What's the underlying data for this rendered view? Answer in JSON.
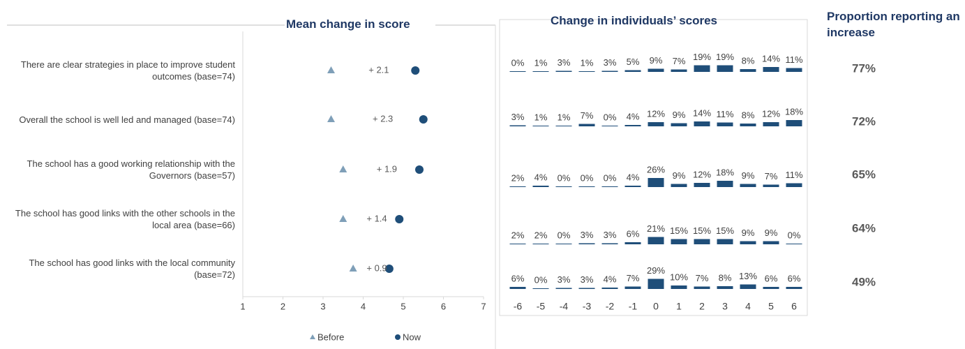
{
  "chart_data": [
    {
      "type": "dot",
      "title": "Mean change in score",
      "categories": [
        "There are clear strategies in place to improve student outcomes  (base=74)",
        "Overall the school is well led and managed (base=74)",
        "The school has a good working relationship with the Governors (base=57)",
        "The school has good links with the other schools in the local area (base=66)",
        "The school has good links with the local community  (base=72)"
      ],
      "series": [
        {
          "name": "Before",
          "color": "#7f9fb8",
          "values": [
            3.2,
            3.2,
            3.5,
            3.5,
            3.75
          ]
        },
        {
          "name": "Now",
          "color": "#1f4e79",
          "values": [
            5.3,
            5.5,
            5.4,
            4.9,
            4.65
          ]
        }
      ],
      "annotations": [
        "+ 2.1",
        "+ 2.3",
        "+ 1.9",
        "+ 1.4",
        "+ 0.9"
      ],
      "xlim": [
        1,
        7
      ],
      "xticks": [
        1,
        2,
        3,
        4,
        5,
        6,
        7
      ],
      "legend": "bottom"
    },
    {
      "type": "bar_rows",
      "title": "Change in individuals’ scores",
      "color": "#1f4e79",
      "categories": [
        -6,
        -5,
        -4,
        -3,
        -2,
        -1,
        0,
        1,
        2,
        3,
        4,
        5,
        6
      ],
      "rows": [
        {
          "values": [
            0,
            1,
            3,
            1,
            3,
            5,
            9,
            7,
            19,
            19,
            8,
            14,
            11
          ],
          "value_labels": [
            "0%",
            "1%",
            "3%",
            "1%",
            "3%",
            "5%",
            "9%",
            "7%",
            "19%",
            "19%",
            "8%",
            "14%",
            "11%"
          ]
        },
        {
          "values": [
            3,
            1,
            1,
            7,
            0,
            4,
            12,
            9,
            14,
            11,
            8,
            12,
            18
          ],
          "value_labels": [
            "3%",
            "1%",
            "1%",
            "7%",
            "0%",
            "4%",
            "12%",
            "9%",
            "14%",
            "11%",
            "8%",
            "12%",
            "18%"
          ]
        },
        {
          "values": [
            2,
            4,
            0,
            0,
            0,
            4,
            26,
            9,
            12,
            18,
            9,
            7,
            11
          ],
          "value_labels": [
            "2%",
            "4%",
            "0%",
            "0%",
            "0%",
            "4%",
            "26%",
            "9%",
            "12%",
            "18%",
            "9%",
            "7%",
            "11%"
          ]
        },
        {
          "values": [
            2,
            2,
            0,
            3,
            3,
            6,
            21,
            15,
            15,
            15,
            9,
            9,
            0
          ],
          "value_labels": [
            "2%",
            "2%",
            "0%",
            "3%",
            "3%",
            "6%",
            "21%",
            "15%",
            "15%",
            "15%",
            "9%",
            "9%",
            "0%"
          ]
        },
        {
          "values": [
            6,
            0,
            3,
            3,
            4,
            7,
            29,
            10,
            7,
            8,
            13,
            6,
            6
          ],
          "value_labels": [
            "6%",
            "0%",
            "3%",
            "3%",
            "4%",
            "7%",
            "29%",
            "10%",
            "7%",
            "8%",
            "13%",
            "6%",
            "6%"
          ]
        }
      ]
    },
    {
      "type": "column_text",
      "title": "Proportion reporting an increase",
      "values": [
        77,
        72,
        65,
        64,
        49
      ],
      "value_labels": [
        "77%",
        "72%",
        "65%",
        "64%",
        "49%"
      ]
    }
  ]
}
